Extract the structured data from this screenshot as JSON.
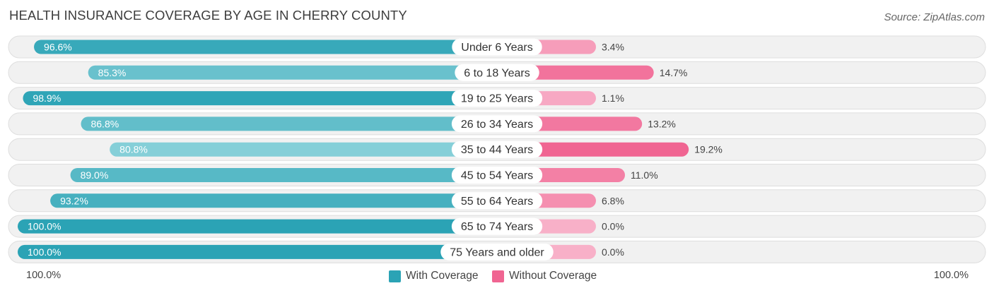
{
  "title": "HEALTH INSURANCE COVERAGE BY AGE IN CHERRY COUNTY",
  "source": "Source: ZipAtlas.com",
  "colors": {
    "with_strong": "#2ba3b5",
    "with_light": "#85cfd8",
    "without_strong": "#f06592",
    "without_light": "#f8b0c8",
    "track": "#f1f1f1",
    "track_border": "#dedede"
  },
  "chart_data": {
    "type": "bar",
    "orientation": "horizontal-diverging",
    "title": "HEALTH INSURANCE COVERAGE BY AGE IN CHERRY COUNTY",
    "categories": [
      "Under 6 Years",
      "6 to 18 Years",
      "19 to 25 Years",
      "26 to 34 Years",
      "35 to 44 Years",
      "45 to 54 Years",
      "55 to 64 Years",
      "65 to 74 Years",
      "75 Years and older"
    ],
    "series": [
      {
        "name": "With Coverage",
        "values": [
          96.6,
          85.3,
          98.9,
          86.8,
          80.8,
          89.0,
          93.2,
          100.0,
          100.0
        ],
        "labels": [
          "96.6%",
          "85.3%",
          "98.9%",
          "86.8%",
          "80.8%",
          "89.0%",
          "93.2%",
          "100.0%",
          "100.0%"
        ]
      },
      {
        "name": "Without Coverage",
        "values": [
          3.4,
          14.7,
          1.1,
          13.2,
          19.2,
          11.0,
          6.8,
          0.0,
          0.0
        ],
        "labels": [
          "3.4%",
          "14.7%",
          "1.1%",
          "13.2%",
          "19.2%",
          "11.0%",
          "6.8%",
          "0.0%",
          "0.0%"
        ]
      }
    ],
    "axis_left_label": "100.0%",
    "axis_right_label": "100.0%",
    "xlim": [
      0,
      100
    ],
    "legend_position": "bottom-center"
  }
}
